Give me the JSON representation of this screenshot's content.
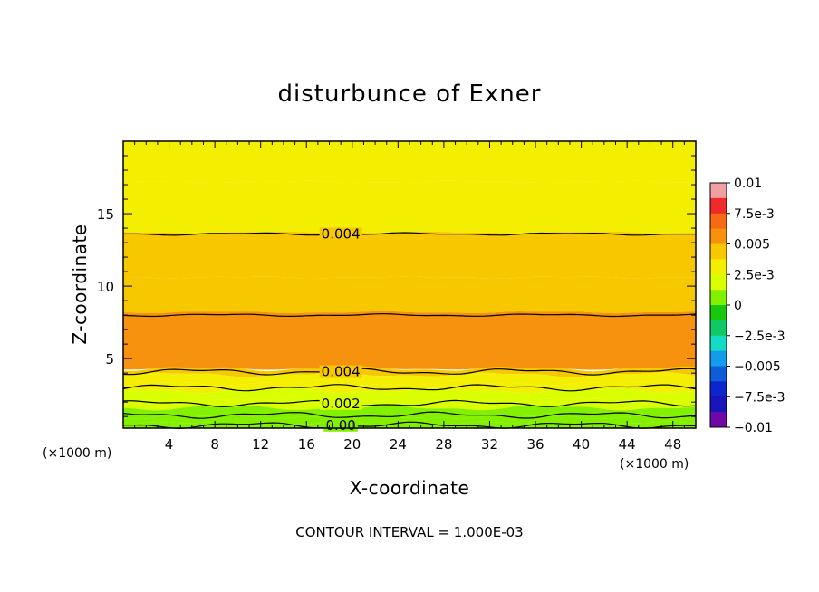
{
  "chart_data": {
    "type": "contour",
    "title": "disturbunce of Exner",
    "xlabel": "X-coordinate",
    "ylabel": "Z-coordinate",
    "x_unit": "(×1000 m)",
    "y_unit": "(×1000 m)",
    "xlim": [
      0,
      50
    ],
    "ylim": [
      0.2,
      20
    ],
    "x_ticks": [
      "4",
      "8",
      "12",
      "16",
      "20",
      "24",
      "28",
      "32",
      "36",
      "40",
      "44",
      "48"
    ],
    "y_ticks": [
      "5",
      "10",
      "15"
    ],
    "footer": "CONTOUR INTERVAL = 1.000E-03",
    "colorbar": {
      "range": [
        -0.01,
        0.01
      ],
      "tick_labels": [
        "0.01",
        "7.5e-3",
        "0.005",
        "2.5e-3",
        "0",
        "−2.5e-3",
        "−0.005",
        "−7.5e-3",
        "−0.01"
      ],
      "tick_values": [
        0.01,
        0.0075,
        0.005,
        0.0025,
        0,
        -0.0025,
        -0.005,
        -0.0075,
        -0.01
      ],
      "colors": [
        "#f0a0a0",
        "#ee2a2a",
        "#f56a12",
        "#f7920e",
        "#f7c700",
        "#f4ee00",
        "#d9ff00",
        "#83f000",
        "#17c80f",
        "#12c864",
        "#13dcc3",
        "#129ceb",
        "#0f5cd8",
        "#0c25cc",
        "#1815b9",
        "#6f08a6"
      ]
    },
    "contour_labels": [
      "0.004",
      "0.004",
      "0.002",
      "0.00"
    ],
    "profile": [
      {
        "z_top": 20.0,
        "value": 0.0026
      },
      {
        "z_top": 17.2,
        "value": 0.0032
      },
      {
        "z_top": 13.7,
        "value": 0.0042
      },
      {
        "z_top": 10.6,
        "value": 0.0048
      },
      {
        "z_top": 8.2,
        "value": 0.0052
      },
      {
        "z_top": 4.3,
        "value": 0.0042
      },
      {
        "z_top": 3.9,
        "value": 0.0034
      },
      {
        "z_top": 3.3,
        "value": 0.0027
      },
      {
        "z_top": 2.8,
        "value": 0.0022
      },
      {
        "z_top": 2.1,
        "value": 0.0016
      },
      {
        "z_top": 1.6,
        "value": 0.0011
      },
      {
        "z_top": 1.0,
        "value": 0.0006
      },
      {
        "z_top": 0.5,
        "value": 0.0002
      }
    ],
    "contour_levels": [
      {
        "value": 0.004,
        "z": 13.6,
        "label": "0.004",
        "label_x": 19
      },
      {
        "value": 0.005,
        "z": 8.0,
        "label": ""
      },
      {
        "value": 0.004,
        "z": 4.1,
        "label": "0.004",
        "label_x": 19
      },
      {
        "value": 0.003,
        "z": 3.0,
        "label": ""
      },
      {
        "value": 0.002,
        "z": 1.9,
        "label": "0.002",
        "label_x": 19
      },
      {
        "value": 0.001,
        "z": 1.1,
        "label": ""
      },
      {
        "value": 0.0,
        "z": 0.4,
        "label": "0.00",
        "label_x": 19
      }
    ]
  }
}
